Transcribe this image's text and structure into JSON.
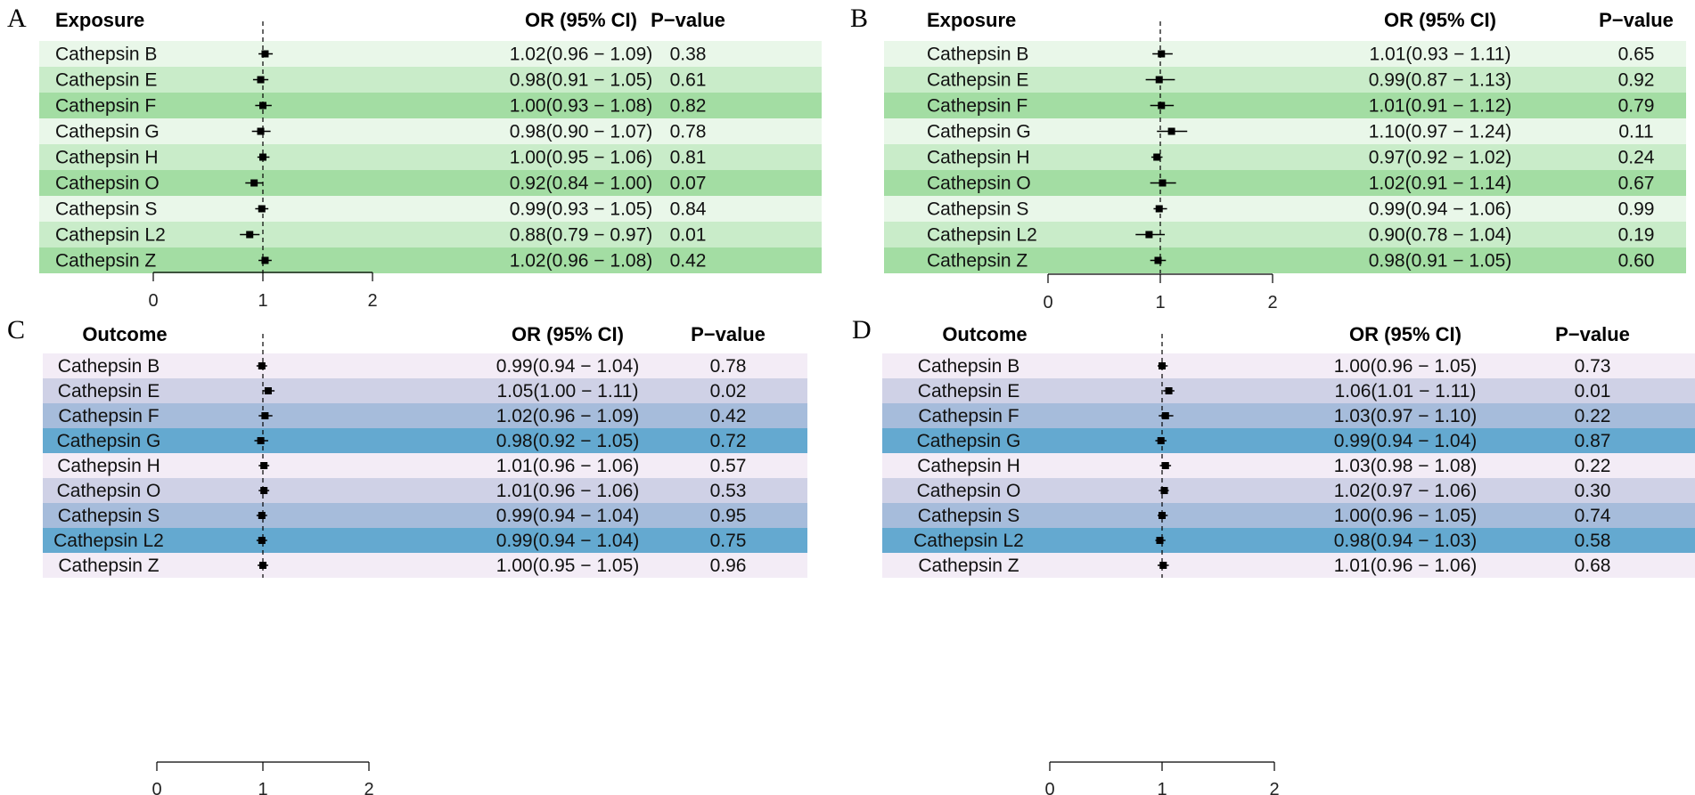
{
  "chart_data": [
    {
      "type": "forest",
      "panel": "A",
      "header": {
        "label": "Exposure",
        "or": "OR (95% CI)",
        "p": "P−value"
      },
      "row_colors": [
        "#e9f7e9",
        "#c9ecc9",
        "#a3dda3"
      ],
      "axis": {
        "xlim": [
          0,
          2
        ],
        "ticks": [
          "0",
          "1",
          "2"
        ],
        "ref_line": 1
      },
      "rows": [
        {
          "label": "Cathepsin B",
          "or": 1.02,
          "lo": 0.96,
          "hi": 1.09,
          "or_text": "1.02(0.96 − 1.09)",
          "p": "0.38"
        },
        {
          "label": "Cathepsin E",
          "or": 0.98,
          "lo": 0.91,
          "hi": 1.05,
          "or_text": "0.98(0.91 − 1.05)",
          "p": "0.61"
        },
        {
          "label": "Cathepsin F",
          "or": 1.0,
          "lo": 0.93,
          "hi": 1.08,
          "or_text": "1.00(0.93 − 1.08)",
          "p": "0.82"
        },
        {
          "label": "Cathepsin G",
          "or": 0.98,
          "lo": 0.9,
          "hi": 1.07,
          "or_text": "0.98(0.90 − 1.07)",
          "p": "0.78"
        },
        {
          "label": "Cathepsin H",
          "or": 1.0,
          "lo": 0.95,
          "hi": 1.06,
          "or_text": "1.00(0.95 − 1.06)",
          "p": "0.81"
        },
        {
          "label": "Cathepsin O",
          "or": 0.92,
          "lo": 0.84,
          "hi": 1.0,
          "or_text": "0.92(0.84 − 1.00)",
          "p": "0.07"
        },
        {
          "label": "Cathepsin S",
          "or": 0.99,
          "lo": 0.93,
          "hi": 1.05,
          "or_text": "0.99(0.93 − 1.05)",
          "p": "0.84"
        },
        {
          "label": "Cathepsin L2",
          "or": 0.88,
          "lo": 0.79,
          "hi": 0.97,
          "or_text": "0.88(0.79 − 0.97)",
          "p": "0.01"
        },
        {
          "label": "Cathepsin Z",
          "or": 1.02,
          "lo": 0.96,
          "hi": 1.08,
          "or_text": "1.02(0.96 − 1.08)",
          "p": "0.42"
        }
      ]
    },
    {
      "type": "forest",
      "panel": "B",
      "header": {
        "label": "Exposure",
        "or": "OR (95% CI)",
        "p": "P−value"
      },
      "row_colors": [
        "#e9f7e9",
        "#c9ecc9",
        "#a3dda3"
      ],
      "axis": {
        "xlim": [
          0,
          2
        ],
        "ticks": [
          "0",
          "1",
          "2"
        ],
        "ref_line": 1
      },
      "rows": [
        {
          "label": "Cathepsin B",
          "or": 1.01,
          "lo": 0.93,
          "hi": 1.11,
          "or_text": "1.01(0.93 − 1.11)",
          "p": "0.65"
        },
        {
          "label": "Cathepsin E",
          "or": 0.99,
          "lo": 0.87,
          "hi": 1.13,
          "or_text": "0.99(0.87 − 1.13)",
          "p": "0.92"
        },
        {
          "label": "Cathepsin F",
          "or": 1.01,
          "lo": 0.91,
          "hi": 1.12,
          "or_text": "1.01(0.91 − 1.12)",
          "p": "0.79"
        },
        {
          "label": "Cathepsin G",
          "or": 1.1,
          "lo": 0.97,
          "hi": 1.24,
          "or_text": "1.10(0.97 − 1.24)",
          "p": "0.11"
        },
        {
          "label": "Cathepsin H",
          "or": 0.97,
          "lo": 0.92,
          "hi": 1.02,
          "or_text": "0.97(0.92 − 1.02)",
          "p": "0.24"
        },
        {
          "label": "Cathepsin O",
          "or": 1.02,
          "lo": 0.91,
          "hi": 1.14,
          "or_text": "1.02(0.91 − 1.14)",
          "p": "0.67"
        },
        {
          "label": "Cathepsin S",
          "or": 0.99,
          "lo": 0.94,
          "hi": 1.06,
          "or_text": "0.99(0.94 − 1.06)",
          "p": "0.99"
        },
        {
          "label": "Cathepsin L2",
          "or": 0.9,
          "lo": 0.78,
          "hi": 1.04,
          "or_text": "0.90(0.78 − 1.04)",
          "p": "0.19"
        },
        {
          "label": "Cathepsin Z",
          "or": 0.98,
          "lo": 0.91,
          "hi": 1.05,
          "or_text": "0.98(0.91 − 1.05)",
          "p": "0.60"
        }
      ]
    },
    {
      "type": "forest",
      "panel": "C",
      "header": {
        "label": "Outcome",
        "or": "OR (95% CI)",
        "p": "P−value"
      },
      "row_colors": [
        "#f3ecf6",
        "#cfd1e6",
        "#a6bcdb",
        "#64a9d0"
      ],
      "axis": {
        "xlim": [
          0,
          2
        ],
        "ticks": [
          "0",
          "1",
          "2"
        ],
        "ref_line": 1
      },
      "rows": [
        {
          "label": "Cathepsin B",
          "or": 0.99,
          "lo": 0.94,
          "hi": 1.04,
          "or_text": "0.99(0.94 − 1.04)",
          "p": "0.78"
        },
        {
          "label": "Cathepsin E",
          "or": 1.05,
          "lo": 1.0,
          "hi": 1.11,
          "or_text": "1.05(1.00 − 1.11)",
          "p": "0.02"
        },
        {
          "label": "Cathepsin F",
          "or": 1.02,
          "lo": 0.96,
          "hi": 1.09,
          "or_text": "1.02(0.96 − 1.09)",
          "p": "0.42"
        },
        {
          "label": "Cathepsin G",
          "or": 0.98,
          "lo": 0.92,
          "hi": 1.05,
          "or_text": "0.98(0.92 − 1.05)",
          "p": "0.72"
        },
        {
          "label": "Cathepsin H",
          "or": 1.01,
          "lo": 0.96,
          "hi": 1.06,
          "or_text": "1.01(0.96 − 1.06)",
          "p": "0.57"
        },
        {
          "label": "Cathepsin O",
          "or": 1.01,
          "lo": 0.96,
          "hi": 1.06,
          "or_text": "1.01(0.96 − 1.06)",
          "p": "0.53"
        },
        {
          "label": "Cathepsin S",
          "or": 0.99,
          "lo": 0.94,
          "hi": 1.04,
          "or_text": "0.99(0.94 − 1.04)",
          "p": "0.95"
        },
        {
          "label": "Cathepsin L2",
          "or": 0.99,
          "lo": 0.94,
          "hi": 1.04,
          "or_text": "0.99(0.94 − 1.04)",
          "p": "0.75"
        },
        {
          "label": "Cathepsin Z",
          "or": 1.0,
          "lo": 0.95,
          "hi": 1.05,
          "or_text": "1.00(0.95 − 1.05)",
          "p": "0.96"
        }
      ]
    },
    {
      "type": "forest",
      "panel": "D",
      "header": {
        "label": "Outcome",
        "or": "OR (95% CI)",
        "p": "P−value"
      },
      "row_colors": [
        "#f3ecf6",
        "#cfd1e6",
        "#a6bcdb",
        "#64a9d0"
      ],
      "axis": {
        "xlim": [
          0,
          2
        ],
        "ticks": [
          "0",
          "1",
          "2"
        ],
        "ref_line": 1
      },
      "rows": [
        {
          "label": "Cathepsin B",
          "or": 1.0,
          "lo": 0.96,
          "hi": 1.05,
          "or_text": "1.00(0.96 − 1.05)",
          "p": "0.73"
        },
        {
          "label": "Cathepsin E",
          "or": 1.06,
          "lo": 1.01,
          "hi": 1.11,
          "or_text": "1.06(1.01 − 1.11)",
          "p": "0.01"
        },
        {
          "label": "Cathepsin F",
          "or": 1.03,
          "lo": 0.97,
          "hi": 1.1,
          "or_text": "1.03(0.97 − 1.10)",
          "p": "0.22"
        },
        {
          "label": "Cathepsin G",
          "or": 0.99,
          "lo": 0.94,
          "hi": 1.04,
          "or_text": "0.99(0.94 − 1.04)",
          "p": "0.87"
        },
        {
          "label": "Cathepsin H",
          "or": 1.03,
          "lo": 0.98,
          "hi": 1.08,
          "or_text": "1.03(0.98 − 1.08)",
          "p": "0.22"
        },
        {
          "label": "Cathepsin O",
          "or": 1.02,
          "lo": 0.97,
          "hi": 1.06,
          "or_text": "1.02(0.97 − 1.06)",
          "p": "0.30"
        },
        {
          "label": "Cathepsin S",
          "or": 1.0,
          "lo": 0.96,
          "hi": 1.05,
          "or_text": "1.00(0.96 − 1.05)",
          "p": "0.74"
        },
        {
          "label": "Cathepsin L2",
          "or": 0.98,
          "lo": 0.94,
          "hi": 1.03,
          "or_text": "0.98(0.94 − 1.03)",
          "p": "0.58"
        },
        {
          "label": "Cathepsin Z",
          "or": 1.01,
          "lo": 0.96,
          "hi": 1.06,
          "or_text": "1.01(0.96 − 1.06)",
          "p": "0.68"
        }
      ]
    }
  ]
}
